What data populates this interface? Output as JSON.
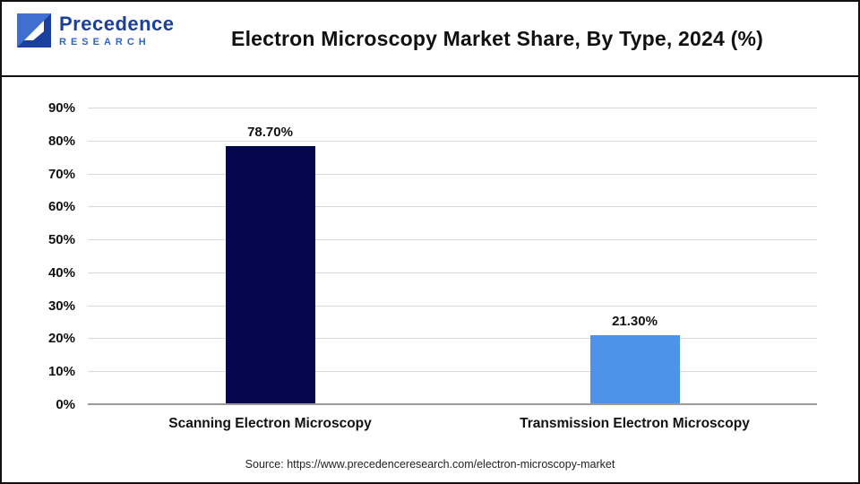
{
  "header": {
    "title": "Electron Microscopy Market Share, By Type, 2024 (%)",
    "logo": {
      "name": "Precedence",
      "sub": "RESEARCH"
    }
  },
  "chart_data": {
    "type": "bar",
    "title": "Electron Microscopy Market Share, By Type, 2024 (%)",
    "categories": [
      "Scanning Electron Microscopy",
      "Transmission Electron Microscopy"
    ],
    "values": [
      78.7,
      21.3
    ],
    "value_labels": [
      "78.70%",
      "21.30%"
    ],
    "bar_colors": [
      "#04074d",
      "#4d93ea"
    ],
    "xlabel": "",
    "ylabel": "",
    "ylim": [
      0,
      90
    ],
    "yticks": [
      "90%",
      "80%",
      "70%",
      "60%",
      "50%",
      "40%",
      "30%",
      "20%",
      "10%",
      "0%"
    ],
    "grid": true,
    "legend": "none"
  },
  "footer": {
    "source": "Source: https://www.precedenceresearch.com/electron-microscopy-market"
  }
}
